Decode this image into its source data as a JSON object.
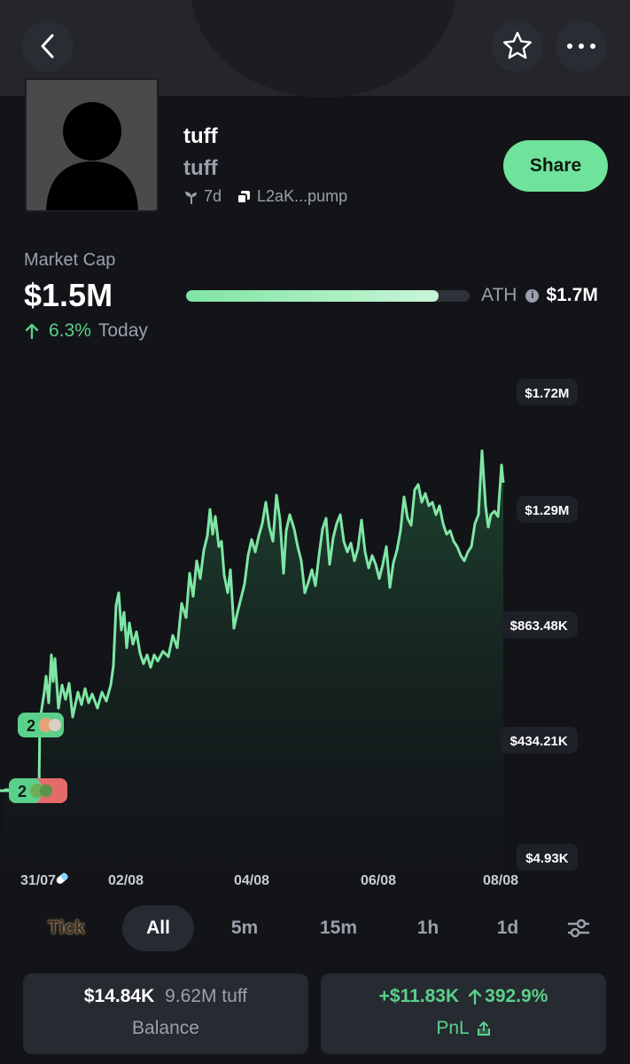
{
  "header": {
    "back_icon": "chevron-left-icon",
    "favorite_icon": "star-outline-icon",
    "more_icon": "more-horizontal-icon"
  },
  "token": {
    "name": "tuff",
    "symbol": "tuff",
    "age": "7d",
    "address": "L2aK...pump",
    "share_label": "Share"
  },
  "market": {
    "label": "Market Cap",
    "value": "$1.5M",
    "change": "6.3%",
    "change_period": "Today",
    "ath_label": "ATH",
    "ath_value": "$1.7M",
    "ath_progress": 0.89
  },
  "chart_data": {
    "type": "area",
    "y_ticks": [
      "$1.72M",
      "$1.29M",
      "$863.48K",
      "$434.21K",
      "$4.93K"
    ],
    "x_ticks": [
      "31/07",
      "02/08",
      "04/08",
      "06/08",
      "08/08"
    ],
    "ylim": [
      4930,
      1720000
    ],
    "markers": [
      {
        "count": "2",
        "color": "#5bd08a"
      },
      {
        "count": "2",
        "color": "#5bd08a"
      }
    ],
    "colors": {
      "line": "#7ee6a5",
      "fill_top": "#1f4a33",
      "fill_bottom": "#14161a"
    }
  },
  "tabs": [
    "Tick",
    "All",
    "5m",
    "15m",
    "1h",
    "1d"
  ],
  "active_tab": "All",
  "balance": {
    "usd": "$14.84K",
    "amount": "9.62M tuff",
    "label": "Balance"
  },
  "pnl": {
    "value": "+$11.83K",
    "percent": "392.9%",
    "label": "PnL"
  },
  "colors": {
    "accent": "#6fe39b",
    "positive": "#5bd08a",
    "background": "#121418"
  }
}
